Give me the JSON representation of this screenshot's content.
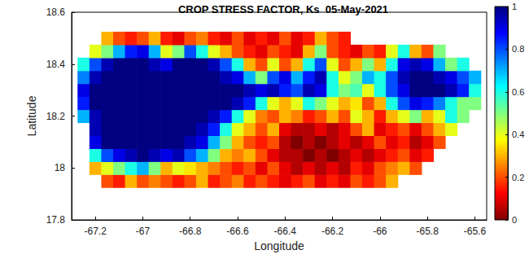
{
  "chart_data": {
    "type": "heatmap",
    "title": "CROP STRESS FACTOR, Ks  05-May-2021",
    "x_label": "Longitude",
    "y_label": "Latitude",
    "xlim": [
      -67.3,
      -65.55
    ],
    "xticks": [
      -67.2,
      -67,
      -66.8,
      -66.6,
      -66.4,
      -66.2,
      -66,
      -65.8,
      -65.6
    ],
    "ylim": [
      17.8,
      18.6
    ],
    "yticks": [
      17.8,
      18,
      18.2,
      18.4,
      18.6
    ],
    "x": [
      -67.25,
      -67.2,
      -67.15,
      -67.1,
      -67.05,
      -67,
      -66.95,
      -66.9,
      -66.85,
      -66.8,
      -66.75,
      -66.7,
      -66.65,
      -66.6,
      -66.55,
      -66.5,
      -66.45,
      -66.4,
      -66.35,
      -66.3,
      -66.25,
      -66.2,
      -66.15,
      -66.1,
      -66.05,
      -66,
      -65.95,
      -65.9,
      -65.85,
      -65.8,
      -65.75,
      -65.7,
      -65.65,
      -65.6
    ],
    "y": [
      17.95,
      18,
      18.05,
      18.1,
      18.15,
      18.2,
      18.25,
      18.3,
      18.35,
      18.4,
      18.45,
      18.5
    ],
    "values": [
      [
        null,
        null,
        0.2,
        0.15,
        0.3,
        0.2,
        0.25,
        0.2,
        0.15,
        0.2,
        0.3,
        0.15,
        0.2,
        0.25,
        0.15,
        0.2,
        0.15,
        0.1,
        0.15,
        0.2,
        0.1,
        0.15,
        0.1,
        0.2,
        0.15,
        0.2,
        0.3,
        null,
        null,
        null,
        null,
        null,
        null,
        null
      ],
      [
        null,
        0.3,
        0.4,
        0.5,
        0.6,
        0.7,
        0.5,
        0.3,
        0.4,
        0.35,
        0.3,
        0.25,
        0.2,
        0.15,
        0.2,
        0.1,
        0.2,
        0.1,
        0.05,
        0.1,
        0.05,
        0.1,
        0.05,
        0.15,
        0.1,
        0.2,
        0.25,
        0.3,
        0.2,
        null,
        null,
        null,
        null,
        null
      ],
      [
        null,
        0.6,
        0.8,
        0.9,
        0.95,
        1,
        0.95,
        0.9,
        0.95,
        0.8,
        0.7,
        0.5,
        0.3,
        0.25,
        0.3,
        0.2,
        0.1,
        0.05,
        0.05,
        0,
        0.05,
        0,
        0.05,
        0.1,
        0.05,
        0.1,
        0.15,
        0.2,
        0.1,
        0.15,
        null,
        null,
        null,
        null
      ],
      [
        null,
        0.9,
        1,
        1,
        1,
        1,
        1,
        1,
        1,
        0.95,
        0.9,
        0.7,
        0.5,
        0.3,
        0.2,
        0.15,
        0.2,
        0.05,
        0,
        0.05,
        0,
        0.05,
        0.1,
        0.05,
        0.1,
        0.2,
        0.1,
        0.15,
        0.05,
        0.1,
        0.2,
        null,
        null,
        null
      ],
      [
        null,
        0.95,
        1,
        1,
        1,
        1,
        1,
        1,
        1,
        1,
        0.95,
        0.85,
        0.6,
        0.4,
        0.3,
        0.2,
        0.3,
        0.1,
        0.05,
        0.05,
        0.1,
        0.05,
        0.1,
        0.2,
        0.3,
        0.1,
        0.15,
        0.2,
        0.1,
        0.2,
        0.3,
        0.4,
        null,
        null
      ],
      [
        0.7,
        0.95,
        1,
        1,
        1,
        1,
        1,
        1,
        1,
        1,
        1,
        0.95,
        0.85,
        0.6,
        0.4,
        0.25,
        0.2,
        0.3,
        0.25,
        0.15,
        0.2,
        0.3,
        0.2,
        0.4,
        0.3,
        0.15,
        0.3,
        0.4,
        0.5,
        0.3,
        0.4,
        0.6,
        0.5,
        null
      ],
      [
        0.85,
        1,
        1,
        1,
        1,
        1,
        1,
        1,
        1,
        1,
        1,
        1,
        1,
        0.95,
        0.85,
        0.6,
        0.4,
        0.3,
        0.4,
        0.6,
        0.5,
        0.4,
        0.3,
        0.35,
        0.2,
        0.3,
        0.6,
        0.8,
        0.9,
        0.85,
        0.75,
        0.6,
        0.5,
        0.5
      ],
      [
        0.9,
        1,
        1,
        1,
        1,
        1,
        1,
        1,
        1,
        1,
        1,
        1,
        1,
        1,
        0.95,
        0.9,
        0.95,
        0.85,
        0.8,
        0.95,
        0.9,
        0.6,
        0.5,
        0.55,
        0.4,
        0.6,
        0.8,
        0.9,
        1,
        1,
        1,
        0.95,
        0.85,
        0.6
      ],
      [
        0.75,
        0.95,
        1,
        1,
        1,
        1,
        1,
        1,
        1,
        1,
        1,
        1,
        0.95,
        0.9,
        0.7,
        0.5,
        0.8,
        0.9,
        0.7,
        0.85,
        0.95,
        0.6,
        0.4,
        0.5,
        0.7,
        0.6,
        0.8,
        0.95,
        1,
        1,
        0.95,
        0.9,
        0.8,
        0.7
      ],
      [
        0.6,
        0.8,
        0.95,
        1,
        1,
        1,
        0.95,
        0.9,
        1,
        1,
        1,
        0.95,
        0.8,
        0.6,
        0.3,
        0.2,
        0.4,
        0.2,
        0.3,
        0.6,
        0.8,
        0.4,
        0.2,
        0.3,
        0.5,
        0.3,
        0.6,
        0.9,
        0.95,
        0.9,
        0.7,
        0.5,
        0.6,
        null
      ],
      [
        null,
        0.4,
        0.5,
        0.7,
        0.85,
        0.9,
        0.7,
        0.4,
        0.5,
        0.8,
        0.6,
        0.4,
        0.3,
        0.2,
        0.15,
        0.1,
        0.2,
        0.15,
        0.1,
        0.3,
        0.5,
        0.2,
        0.15,
        0.1,
        0.2,
        0.15,
        0.4,
        0.6,
        0.3,
        0.2,
        0.5,
        null,
        null,
        null
      ],
      [
        null,
        null,
        0.3,
        0.2,
        0.15,
        0.2,
        0.3,
        0.15,
        0.1,
        0.2,
        0.25,
        0.15,
        0.1,
        0.2,
        0.1,
        0.15,
        0.1,
        0.2,
        0.1,
        0.15,
        0.3,
        0.2,
        0.15,
        null,
        null,
        null,
        null,
        null,
        null,
        null,
        null,
        null,
        null,
        null
      ]
    ],
    "colorbar": {
      "range": [
        0,
        1
      ],
      "ticks": [
        0,
        0.2,
        0.4,
        0.6,
        0.8,
        1
      ]
    }
  }
}
